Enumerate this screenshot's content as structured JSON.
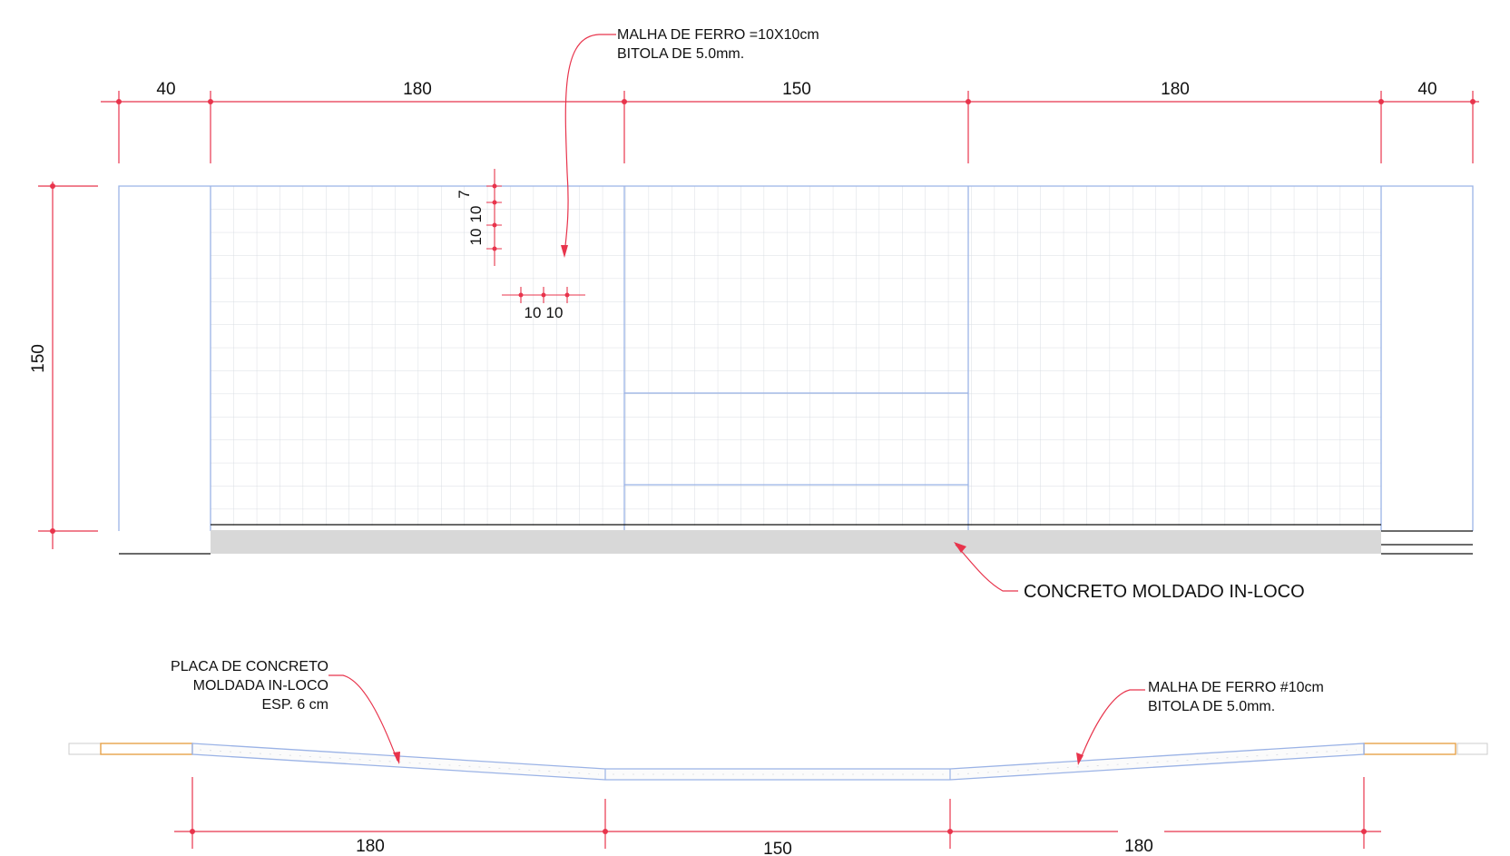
{
  "top_dimensions": [
    "40",
    "180",
    "150",
    "180",
    "40"
  ],
  "left_dimension": "150",
  "annotations": {
    "mesh_top_line1": "MALHA DE FERRO =10X10cm",
    "mesh_top_line2": "BITOLA DE 5.0mm.",
    "concrete_base": "CONCRETO MOLDADO IN-LOCO",
    "plate_line1": "PLACA DE CONCRETO",
    "plate_line2": "MOLDADA IN-LOCO",
    "plate_line3": "ESP. 6 cm",
    "mesh_right_line1": "MALHA DE FERRO #10cm",
    "mesh_right_line2": "BITOLA DE 5.0mm."
  },
  "spacing_dims": {
    "v_top": "7",
    "v_mid": "10",
    "v_low": "10",
    "h_left": "10",
    "h_right": "10"
  },
  "bottom_dimensions": [
    "180",
    "150",
    "180"
  ],
  "colors": {
    "dimension": "#e8344c",
    "outline": "#9bb3e6",
    "grid": "#d9dde3",
    "concrete": "#d8d8d8",
    "timber": "#e6a24a",
    "leader": "#e8344c"
  }
}
